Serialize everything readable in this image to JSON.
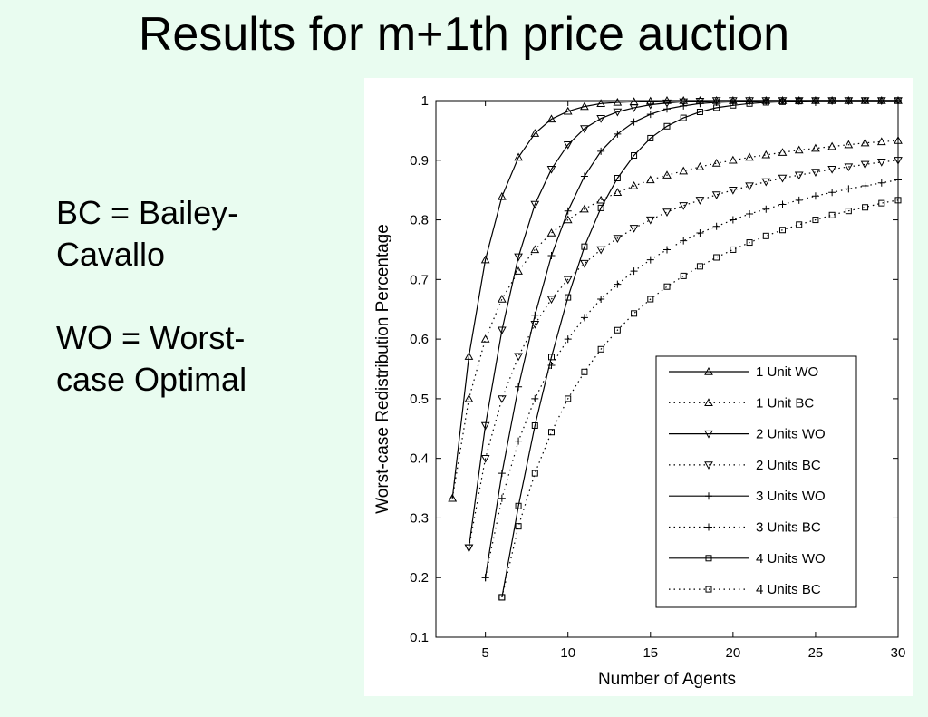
{
  "slide": {
    "title": "Results for m+1th price auction",
    "notes": [
      {
        "text": "BC = Bailey-\nCavallo"
      },
      {
        "text": "WO = Worst-\ncase Optimal"
      }
    ]
  },
  "chart_data": {
    "type": "line",
    "title": "",
    "xlabel": "Number of Agents",
    "ylabel": "Worst-case Redistribution Percentage",
    "xlim": [
      2,
      30
    ],
    "ylim": [
      0.1,
      1
    ],
    "xticks": [
      5,
      10,
      15,
      20,
      25,
      30
    ],
    "yticks": [
      0.1,
      0.2,
      0.3,
      0.4,
      0.5,
      0.6,
      0.7,
      0.8,
      0.9,
      1
    ],
    "legend_position": "bottom-right",
    "grid": false,
    "series": [
      {
        "name": "1 Unit WO",
        "marker": "triangle-up",
        "line": "solid",
        "x": [
          3,
          4,
          5,
          6,
          7,
          8,
          9,
          10,
          11,
          12,
          13,
          14,
          15,
          16,
          17,
          18,
          19,
          20,
          21,
          22,
          23,
          24,
          25,
          26,
          27,
          28,
          29,
          30
        ],
        "y": [
          0.333,
          0.571,
          0.733,
          0.839,
          0.905,
          0.945,
          0.969,
          0.982,
          0.99,
          0.995,
          0.997,
          0.998,
          0.999,
          1,
          1,
          1,
          1,
          1,
          1,
          1,
          1,
          1,
          1,
          1,
          1,
          1,
          1,
          1
        ]
      },
      {
        "name": "1 Unit BC",
        "marker": "triangle-up",
        "line": "dotted",
        "x": [
          3,
          4,
          5,
          6,
          7,
          8,
          9,
          10,
          11,
          12,
          13,
          14,
          15,
          16,
          17,
          18,
          19,
          20,
          21,
          22,
          23,
          24,
          25,
          26,
          27,
          28,
          29,
          30
        ],
        "y": [
          0.333,
          0.5,
          0.6,
          0.667,
          0.714,
          0.75,
          0.778,
          0.8,
          0.818,
          0.833,
          0.846,
          0.857,
          0.867,
          0.875,
          0.882,
          0.889,
          0.895,
          0.9,
          0.905,
          0.909,
          0.913,
          0.917,
          0.92,
          0.923,
          0.926,
          0.929,
          0.931,
          0.933
        ]
      },
      {
        "name": "2 Units WO",
        "marker": "triangle-down",
        "line": "solid",
        "x": [
          4,
          5,
          6,
          7,
          8,
          9,
          10,
          11,
          12,
          13,
          14,
          15,
          16,
          17,
          18,
          19,
          20,
          21,
          22,
          23,
          24,
          25,
          26,
          27,
          28,
          29,
          30
        ],
        "y": [
          0.25,
          0.455,
          0.615,
          0.738,
          0.826,
          0.885,
          0.926,
          0.953,
          0.97,
          0.981,
          0.988,
          0.993,
          0.996,
          0.998,
          0.999,
          1,
          1,
          1,
          1,
          1,
          1,
          1,
          1,
          1,
          1,
          1,
          1
        ]
      },
      {
        "name": "2 Units BC",
        "marker": "triangle-down",
        "line": "dotted",
        "x": [
          4,
          5,
          6,
          7,
          8,
          9,
          10,
          11,
          12,
          13,
          14,
          15,
          16,
          17,
          18,
          19,
          20,
          21,
          22,
          23,
          24,
          25,
          26,
          27,
          28,
          29,
          30
        ],
        "y": [
          0.25,
          0.4,
          0.5,
          0.571,
          0.625,
          0.667,
          0.7,
          0.727,
          0.75,
          0.769,
          0.786,
          0.8,
          0.813,
          0.824,
          0.833,
          0.842,
          0.85,
          0.857,
          0.864,
          0.87,
          0.875,
          0.88,
          0.885,
          0.889,
          0.893,
          0.897,
          0.9
        ]
      },
      {
        "name": "3 Units WO",
        "marker": "plus",
        "line": "solid",
        "x": [
          5,
          6,
          7,
          8,
          9,
          10,
          11,
          12,
          13,
          14,
          15,
          16,
          17,
          18,
          19,
          20,
          21,
          22,
          23,
          24,
          25,
          26,
          27,
          28,
          29,
          30
        ],
        "y": [
          0.2,
          0.375,
          0.52,
          0.64,
          0.74,
          0.815,
          0.873,
          0.915,
          0.944,
          0.964,
          0.977,
          0.986,
          0.991,
          0.995,
          0.997,
          0.998,
          0.999,
          1,
          1,
          1,
          1,
          1,
          1,
          1,
          1,
          1
        ]
      },
      {
        "name": "3 Units BC",
        "marker": "plus",
        "line": "dotted",
        "x": [
          5,
          6,
          7,
          8,
          9,
          10,
          11,
          12,
          13,
          14,
          15,
          16,
          17,
          18,
          19,
          20,
          21,
          22,
          23,
          24,
          25,
          26,
          27,
          28,
          29,
          30
        ],
        "y": [
          0.2,
          0.333,
          0.429,
          0.5,
          0.556,
          0.6,
          0.636,
          0.667,
          0.692,
          0.714,
          0.733,
          0.75,
          0.765,
          0.778,
          0.789,
          0.8,
          0.81,
          0.818,
          0.826,
          0.833,
          0.84,
          0.846,
          0.852,
          0.857,
          0.862,
          0.867
        ]
      },
      {
        "name": "4 Units WO",
        "marker": "square",
        "line": "solid",
        "x": [
          6,
          7,
          8,
          9,
          10,
          11,
          12,
          13,
          14,
          15,
          16,
          17,
          18,
          19,
          20,
          21,
          22,
          23,
          24,
          25,
          26,
          27,
          28,
          29,
          30
        ],
        "y": [
          0.167,
          0.32,
          0.455,
          0.57,
          0.67,
          0.755,
          0.82,
          0.87,
          0.908,
          0.937,
          0.957,
          0.971,
          0.981,
          0.988,
          0.992,
          0.995,
          0.997,
          0.998,
          0.999,
          1,
          1,
          1,
          1,
          1,
          1
        ]
      },
      {
        "name": "4 Units BC",
        "marker": "square",
        "line": "dotted",
        "x": [
          6,
          7,
          8,
          9,
          10,
          11,
          12,
          13,
          14,
          15,
          16,
          17,
          18,
          19,
          20,
          21,
          22,
          23,
          24,
          25,
          26,
          27,
          28,
          29,
          30
        ],
        "y": [
          0.167,
          0.286,
          0.375,
          0.444,
          0.5,
          0.545,
          0.583,
          0.615,
          0.643,
          0.667,
          0.688,
          0.706,
          0.722,
          0.737,
          0.75,
          0.762,
          0.773,
          0.783,
          0.792,
          0.8,
          0.808,
          0.815,
          0.821,
          0.828,
          0.833
        ]
      }
    ]
  }
}
